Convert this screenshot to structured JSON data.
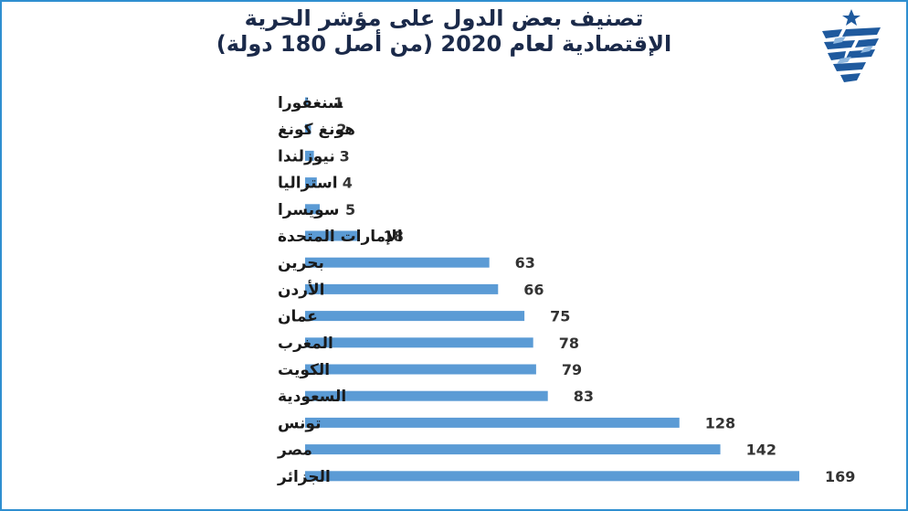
{
  "header": {
    "title_line1": "تصنيف بعض الدول على مؤشر الحرية",
    "title_line2": "الإقتصادية لعام 2020 (من أصل 180 دولة)"
  },
  "logo": {
    "icon": "logo-emblem-icon"
  },
  "colors": {
    "bar": "#5b9bd5",
    "title": "#1b2a4a",
    "frame": "#2f8fd0"
  },
  "chart_data": {
    "type": "bar",
    "orientation": "horizontal",
    "categories": [
      "سنغفورا",
      "هونغ كونغ",
      "نيوزلندا",
      "استراليا",
      "سويسرا",
      "الإمارات المتحدة",
      "بحرين",
      "الأردن",
      "عمان",
      "المغرب",
      "الكويت",
      "السعودية",
      "تونس",
      "مصر",
      "الجزائر"
    ],
    "values": [
      1,
      2,
      3,
      4,
      5,
      18,
      63,
      66,
      75,
      78,
      79,
      83,
      128,
      142,
      169
    ],
    "data_labels": true,
    "grid": false,
    "xlim": [
      0,
      169
    ]
  }
}
